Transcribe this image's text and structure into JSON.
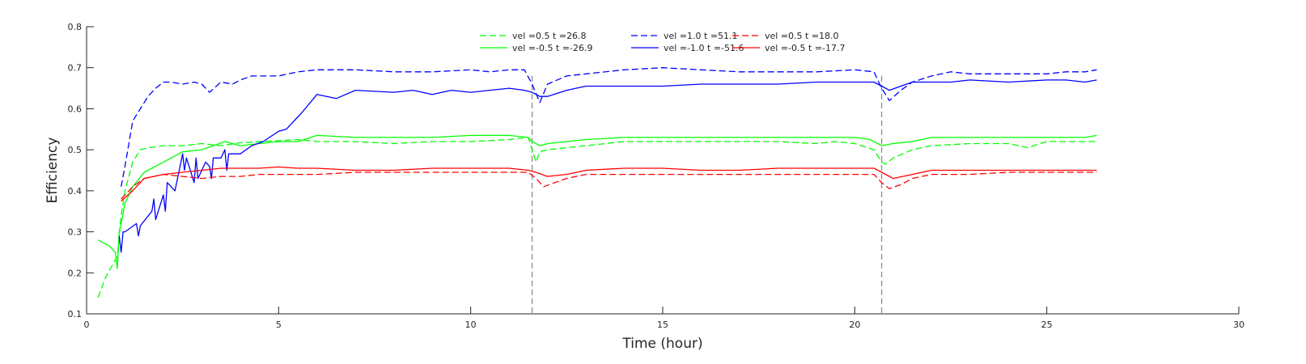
{
  "chart_data": {
    "type": "line",
    "title": "",
    "xlabel": "Time (hour)",
    "ylabel": "Efficiency",
    "xlim": [
      0,
      30
    ],
    "ylim": [
      0.1,
      0.8
    ],
    "xticks": [
      0,
      5,
      10,
      15,
      20,
      25,
      30
    ],
    "yticks": [
      0.1,
      0.2,
      0.3,
      0.4,
      0.5,
      0.6,
      0.7,
      0.8
    ],
    "xtick_labels": [
      "0",
      "5",
      "10",
      "15",
      "20",
      "25",
      "30"
    ],
    "ytick_labels": [
      "0.1",
      "0.2",
      "0.3",
      "0.4",
      "0.5",
      "0.6",
      "0.7",
      "0.8"
    ],
    "grid": false,
    "legend_position": "top-center",
    "vertical_lines": [
      11.6,
      20.7
    ],
    "series": [
      {
        "name": "vel =0.5 t =26.8",
        "color": "#00ff00",
        "dash": "dashed",
        "x": [
          0.3,
          0.5,
          0.8,
          0.85,
          0.9,
          1.0,
          1.2,
          1.4,
          1.6,
          1.8,
          2.0,
          2.5,
          3.0,
          3.5,
          4.0,
          4.5,
          5.0,
          5.5,
          6.0,
          7.0,
          8.0,
          9.0,
          10.0,
          11.0,
          11.5,
          11.6,
          11.7,
          11.8,
          12.0,
          12.5,
          13.0,
          14.0,
          15.0,
          16.0,
          17.0,
          18.0,
          19.0,
          19.5,
          20.0,
          20.5,
          20.7,
          20.8,
          21.0,
          21.5,
          22.0,
          23.0,
          24.0,
          24.5,
          25.0,
          25.5,
          26.0,
          26.3
        ],
        "y": [
          0.14,
          0.19,
          0.24,
          0.29,
          0.34,
          0.4,
          0.47,
          0.5,
          0.505,
          0.507,
          0.51,
          0.51,
          0.515,
          0.51,
          0.517,
          0.52,
          0.522,
          0.525,
          0.52,
          0.52,
          0.515,
          0.52,
          0.52,
          0.525,
          0.53,
          0.5,
          0.47,
          0.495,
          0.5,
          0.505,
          0.51,
          0.52,
          0.52,
          0.52,
          0.52,
          0.52,
          0.515,
          0.52,
          0.515,
          0.5,
          0.47,
          0.465,
          0.48,
          0.5,
          0.51,
          0.515,
          0.515,
          0.505,
          0.52,
          0.52,
          0.52,
          0.52
        ]
      },
      {
        "name": "vel =-0.5 t =-26.9",
        "color": "#00ff00",
        "dash": "solid",
        "x": [
          0.3,
          0.6,
          0.75,
          0.8,
          0.85,
          0.9,
          1.0,
          1.2,
          1.5,
          2.0,
          2.5,
          3.0,
          3.3,
          3.6,
          4.0,
          4.5,
          5.0,
          5.5,
          6.0,
          7.0,
          8.0,
          9.0,
          10.0,
          11.0,
          11.5,
          11.6,
          11.8,
          12.0,
          12.5,
          13.0,
          14.0,
          15.0,
          16.0,
          17.0,
          18.0,
          19.0,
          20.0,
          20.4,
          20.7,
          21.0,
          21.5,
          22.0,
          23.0,
          24.0,
          25.0,
          26.0,
          26.3
        ],
        "y": [
          0.28,
          0.265,
          0.25,
          0.21,
          0.3,
          0.32,
          0.37,
          0.41,
          0.445,
          0.47,
          0.495,
          0.5,
          0.51,
          0.52,
          0.51,
          0.515,
          0.52,
          0.52,
          0.535,
          0.53,
          0.53,
          0.53,
          0.535,
          0.535,
          0.53,
          0.52,
          0.51,
          0.515,
          0.52,
          0.525,
          0.53,
          0.53,
          0.53,
          0.53,
          0.53,
          0.53,
          0.53,
          0.525,
          0.51,
          0.515,
          0.52,
          0.53,
          0.53,
          0.53,
          0.53,
          0.53,
          0.535
        ]
      },
      {
        "name": "vel =1.0 t =51.1",
        "color": "#0000ff",
        "dash": "dashed",
        "x": [
          0.9,
          1.0,
          1.2,
          1.4,
          1.6,
          1.8,
          2.0,
          2.2,
          2.5,
          2.8,
          3.0,
          3.2,
          3.5,
          3.8,
          4.0,
          4.3,
          4.6,
          5.0,
          5.5,
          6.0,
          7.0,
          8.0,
          9.0,
          10.0,
          10.5,
          11.0,
          11.4,
          11.6,
          11.8,
          12.0,
          12.5,
          13.0,
          14.0,
          15.0,
          16.0,
          17.0,
          18.0,
          19.0,
          20.0,
          20.5,
          20.7,
          20.9,
          21.2,
          21.5,
          22.0,
          22.5,
          23.0,
          24.0,
          25.0,
          25.5,
          26.0,
          26.3
        ],
        "y": [
          0.41,
          0.46,
          0.57,
          0.6,
          0.63,
          0.65,
          0.665,
          0.665,
          0.66,
          0.665,
          0.66,
          0.64,
          0.665,
          0.66,
          0.67,
          0.68,
          0.68,
          0.68,
          0.69,
          0.695,
          0.695,
          0.69,
          0.69,
          0.695,
          0.69,
          0.695,
          0.695,
          0.66,
          0.615,
          0.66,
          0.68,
          0.685,
          0.695,
          0.7,
          0.695,
          0.69,
          0.69,
          0.69,
          0.695,
          0.69,
          0.65,
          0.62,
          0.645,
          0.665,
          0.68,
          0.69,
          0.685,
          0.685,
          0.685,
          0.69,
          0.69,
          0.695
        ]
      },
      {
        "name": "vel =-1.0 t =-51.6",
        "color": "#0000ff",
        "dash": "solid",
        "x": [
          0.85,
          0.9,
          0.95,
          1.0,
          1.3,
          1.35,
          1.4,
          1.7,
          1.75,
          1.8,
          2.0,
          2.05,
          2.1,
          2.3,
          2.5,
          2.55,
          2.6,
          2.7,
          2.8,
          2.85,
          2.9,
          3.1,
          3.2,
          3.25,
          3.3,
          3.5,
          3.6,
          3.65,
          3.7,
          4.0,
          4.3,
          4.6,
          5.0,
          5.2,
          5.6,
          6.0,
          6.5,
          7.0,
          8.0,
          8.5,
          9.0,
          9.5,
          10.0,
          10.5,
          11.0,
          11.4,
          11.6,
          11.8,
          12.0,
          12.5,
          13.0,
          14.0,
          15.0,
          16.0,
          17.0,
          18.0,
          19.0,
          20.0,
          20.5,
          20.7,
          20.9,
          21.2,
          21.5,
          22.0,
          22.5,
          23.0,
          24.0,
          25.0,
          25.5,
          26.0,
          26.3
        ],
        "y": [
          0.29,
          0.25,
          0.3,
          0.3,
          0.32,
          0.29,
          0.315,
          0.35,
          0.38,
          0.33,
          0.39,
          0.35,
          0.42,
          0.4,
          0.49,
          0.45,
          0.48,
          0.45,
          0.42,
          0.48,
          0.43,
          0.47,
          0.46,
          0.43,
          0.48,
          0.48,
          0.5,
          0.45,
          0.49,
          0.49,
          0.51,
          0.52,
          0.545,
          0.55,
          0.59,
          0.635,
          0.625,
          0.645,
          0.64,
          0.645,
          0.635,
          0.645,
          0.64,
          0.645,
          0.65,
          0.645,
          0.64,
          0.63,
          0.63,
          0.645,
          0.655,
          0.655,
          0.655,
          0.66,
          0.66,
          0.66,
          0.665,
          0.665,
          0.665,
          0.655,
          0.645,
          0.655,
          0.665,
          0.665,
          0.665,
          0.67,
          0.665,
          0.67,
          0.67,
          0.665,
          0.67
        ]
      },
      {
        "name": "vel =0.5 t =18.0",
        "color": "#ff0000",
        "dash": "dashed",
        "x": [
          0.9,
          1.2,
          1.5,
          2.0,
          2.5,
          3.0,
          3.5,
          4.0,
          4.5,
          5.0,
          6.0,
          7.0,
          8.0,
          9.0,
          10.0,
          11.0,
          11.5,
          11.7,
          11.9,
          12.2,
          12.5,
          13.0,
          14.0,
          15.0,
          16.0,
          17.0,
          18.0,
          19.0,
          20.0,
          20.5,
          20.7,
          20.9,
          21.2,
          21.5,
          22.0,
          23.0,
          24.0,
          25.0,
          26.0,
          26.3
        ],
        "y": [
          0.38,
          0.41,
          0.43,
          0.44,
          0.435,
          0.43,
          0.435,
          0.435,
          0.44,
          0.44,
          0.44,
          0.445,
          0.445,
          0.445,
          0.445,
          0.445,
          0.445,
          0.43,
          0.41,
          0.42,
          0.43,
          0.44,
          0.44,
          0.44,
          0.44,
          0.44,
          0.44,
          0.44,
          0.44,
          0.44,
          0.42,
          0.405,
          0.415,
          0.43,
          0.44,
          0.44,
          0.445,
          0.445,
          0.445,
          0.445
        ]
      },
      {
        "name": "vel =-0.5 t =-17.7",
        "color": "#ff0000",
        "dash": "solid",
        "x": [
          0.9,
          1.2,
          1.5,
          2.0,
          2.5,
          3.0,
          3.5,
          4.0,
          4.5,
          5.0,
          5.5,
          6.0,
          7.0,
          8.0,
          9.0,
          10.0,
          10.5,
          11.0,
          11.5,
          11.7,
          12.0,
          12.5,
          13.0,
          14.0,
          15.0,
          16.0,
          17.0,
          18.0,
          19.0,
          20.0,
          20.5,
          20.7,
          21.0,
          21.5,
          22.0,
          23.0,
          24.0,
          25.0,
          26.0,
          26.3
        ],
        "y": [
          0.375,
          0.4,
          0.43,
          0.44,
          0.445,
          0.45,
          0.455,
          0.455,
          0.455,
          0.458,
          0.455,
          0.455,
          0.45,
          0.45,
          0.455,
          0.455,
          0.455,
          0.455,
          0.45,
          0.445,
          0.435,
          0.44,
          0.45,
          0.455,
          0.455,
          0.45,
          0.45,
          0.455,
          0.455,
          0.455,
          0.455,
          0.445,
          0.43,
          0.44,
          0.45,
          0.45,
          0.45,
          0.45,
          0.45,
          0.45
        ]
      }
    ]
  }
}
